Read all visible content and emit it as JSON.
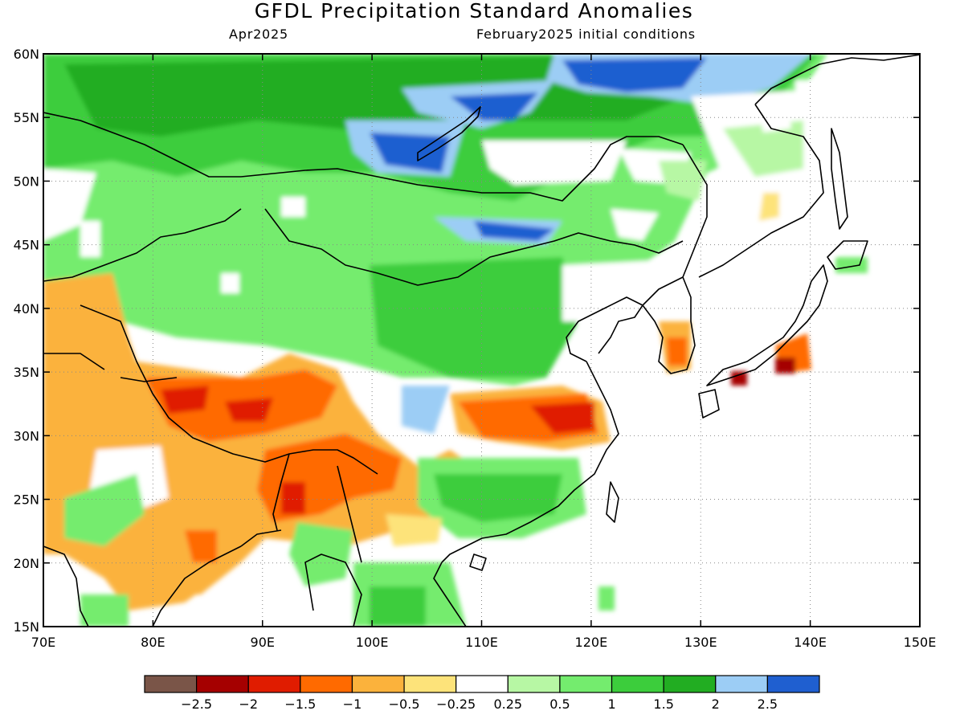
{
  "title": "GFDL Precipitation Standard Anomalies",
  "subtitle_left": "Apr2025",
  "subtitle_right": "February2025 initial conditions",
  "map": {
    "lon_range": [
      70,
      150
    ],
    "lat_range": [
      15,
      60
    ],
    "lon_ticks": [
      "70E",
      "80E",
      "90E",
      "100E",
      "110E",
      "120E",
      "130E",
      "140E",
      "150E"
    ],
    "lat_ticks": [
      "60N",
      "55N",
      "50N",
      "45N",
      "40N",
      "35N",
      "30N",
      "25N",
      "20N",
      "15N"
    ],
    "graticule": "dotted"
  },
  "colorbar": {
    "colors": [
      "#7a5548",
      "#a50000",
      "#e01c00",
      "#ff6a00",
      "#fbb23c",
      "#fde37a",
      "#ffffff",
      "#b7f7a4",
      "#74ec6e",
      "#3ccd3c",
      "#22ad22",
      "#9ccdf5",
      "#1f5fd0"
    ],
    "labels": [
      "-2.5",
      "-2",
      "-1.5",
      "-1",
      "-0.5",
      "-0.25",
      "0.25",
      "0.5",
      "1",
      "1.5",
      "2",
      "2.5"
    ]
  }
}
